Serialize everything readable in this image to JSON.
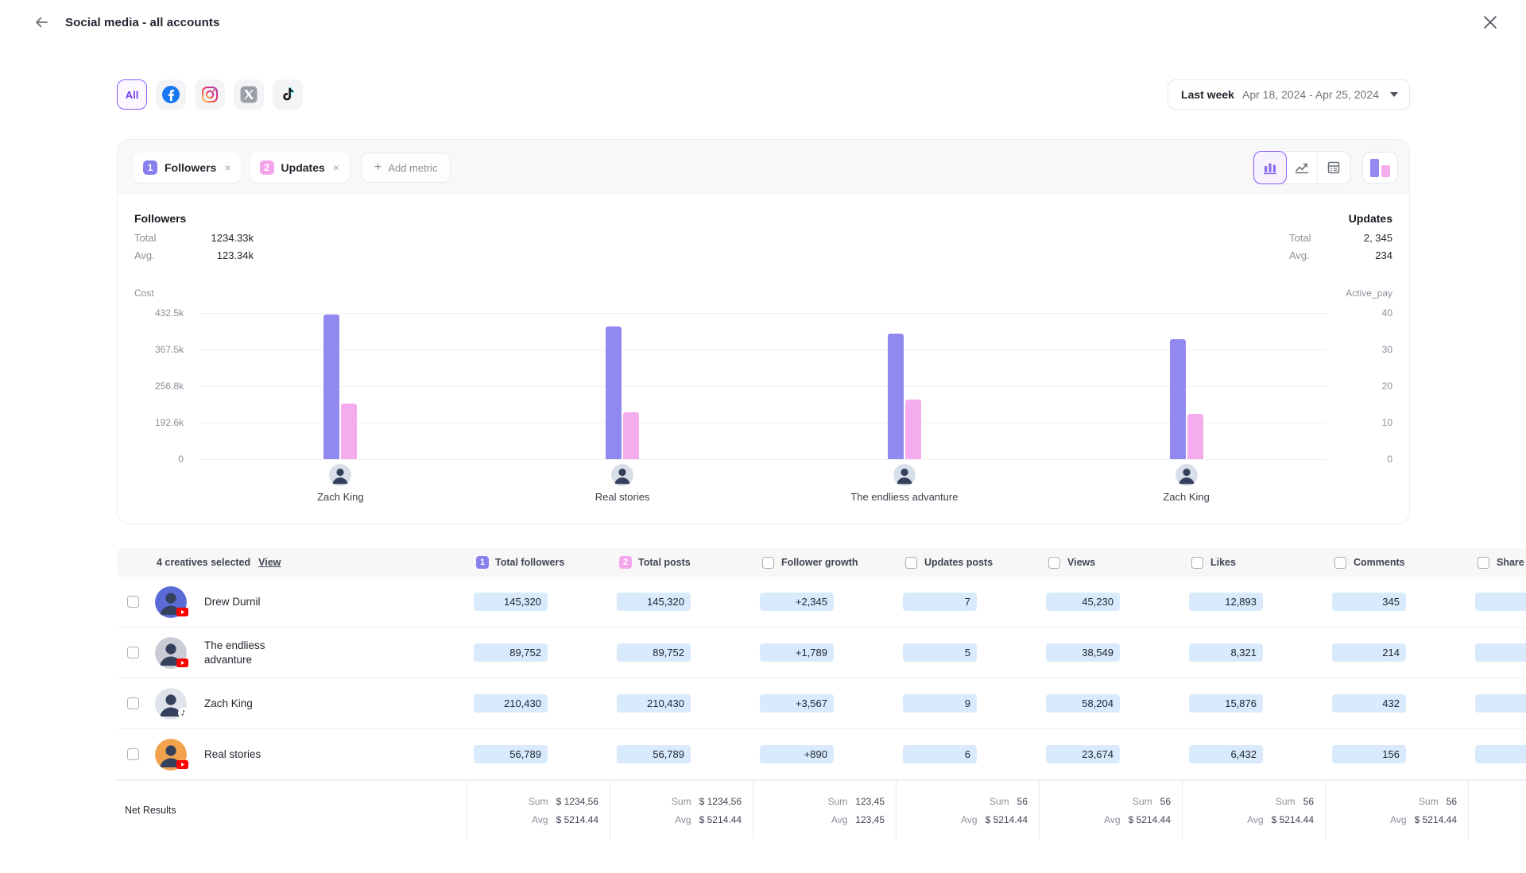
{
  "header": {
    "title": "Social media - all accounts"
  },
  "network_filters": {
    "all_label": "All",
    "networks": [
      {
        "name": "facebook"
      },
      {
        "name": "instagram"
      },
      {
        "name": "x"
      },
      {
        "name": "tiktok"
      }
    ]
  },
  "date_picker": {
    "preset": "Last week",
    "range": "Apr 18, 2024 - Apr 25, 2024"
  },
  "metric_chips": [
    {
      "index": "1",
      "label": "Followers",
      "color": "#8880ee"
    },
    {
      "index": "2",
      "label": "Updates",
      "color": "#f3a5ec"
    }
  ],
  "add_metric": {
    "label": "Add metric",
    "icon": "plus-icon"
  },
  "view_toggles": [
    {
      "name": "bar-chart-view",
      "selected": true
    },
    {
      "name": "line-chart-view",
      "selected": false
    },
    {
      "name": "table-view",
      "selected": false
    }
  ],
  "summary": {
    "followers": {
      "title": "Followers",
      "total_label": "Total",
      "total": "1234.33k",
      "avg_label": "Avg.",
      "avg": "123.34k"
    },
    "updates": {
      "title": "Updates",
      "total_label": "Total",
      "total": "2, 345",
      "avg_label": "Avg.",
      "avg": "234"
    }
  },
  "chart_data": {
    "type": "bar",
    "categories": [
      "Zach King",
      "Real stories",
      "The endliess advanture",
      "Zach King"
    ],
    "series": [
      {
        "name": "Followers",
        "color": "#9189ef",
        "values_pct_of_axis": [
          99,
          91,
          86,
          82
        ]
      },
      {
        "name": "Updates",
        "color": "#f5acee",
        "values_pct_of_axis": [
          38,
          32,
          41,
          31
        ]
      }
    ],
    "left_axis": {
      "label": "Cost",
      "ticks": [
        "432.5k",
        "367.5k",
        "256.8k",
        "192.6k",
        "0"
      ]
    },
    "right_axis": {
      "label": "Active_pay",
      "ticks": [
        "40",
        "30",
        "20",
        "10",
        "0"
      ]
    },
    "grid": true,
    "legend": "none"
  },
  "table": {
    "selection_summary": "4 creatives selected",
    "view_label": "View",
    "columns": [
      {
        "badge": "1",
        "badge_color": "#8880ee",
        "label": "Total followers"
      },
      {
        "badge": "2",
        "badge_color": "#f3a5ec",
        "label": "Total posts"
      },
      {
        "checkbox": true,
        "label": "Follower growth"
      },
      {
        "checkbox": true,
        "label": "Updates posts"
      },
      {
        "checkbox": true,
        "label": "Views"
      },
      {
        "checkbox": true,
        "label": "Likes"
      },
      {
        "checkbox": true,
        "label": "Comments"
      },
      {
        "checkbox": true,
        "label": "Share"
      }
    ],
    "rows": [
      {
        "name": "Drew Durnil",
        "platform": "youtube",
        "avatar_bg": "#5b6bd6",
        "values": [
          "145,320",
          "145,320",
          "+2,345",
          "7",
          "45,230",
          "12,893",
          "345",
          ""
        ]
      },
      {
        "name": "The endliess advanture",
        "platform": "youtube",
        "avatar_bg": "#c9ccd4",
        "values": [
          "89,752",
          "89,752",
          "+1,789",
          "5",
          "38,549",
          "8,321",
          "214",
          ""
        ]
      },
      {
        "name": "Zach King",
        "platform": "tiktok",
        "avatar_bg": "#dfe3ea",
        "values": [
          "210,430",
          "210,430",
          "+3,567",
          "9",
          "58,204",
          "15,876",
          "432",
          ""
        ]
      },
      {
        "name": "Real stories",
        "platform": "youtube",
        "avatar_bg": "#f2a24d",
        "values": [
          "56,789",
          "56,789",
          "+890",
          "6",
          "23,674",
          "6,432",
          "156",
          ""
        ]
      }
    ],
    "net_results": {
      "label": "Net Results",
      "sum_label": "Sum",
      "avg_label": "Avg",
      "cells": [
        {
          "sum": "$ 1234,56",
          "avg": "$ 5214.44"
        },
        {
          "sum": "$ 1234,56",
          "avg": "$ 5214.44"
        },
        {
          "sum": "123,45",
          "avg": "123,45"
        },
        {
          "sum": "56",
          "avg": "$ 5214.44"
        },
        {
          "sum": "56",
          "avg": "$ 5214.44"
        },
        {
          "sum": "56",
          "avg": "$ 5214.44"
        },
        {
          "sum": "56",
          "avg": "$ 5214.44"
        }
      ]
    }
  },
  "colors": {
    "accent_purple": "#8b5cf6",
    "bar_purple": "#9189ef",
    "bar_pink": "#f5acee",
    "pill_blue": "#d8eafb"
  }
}
